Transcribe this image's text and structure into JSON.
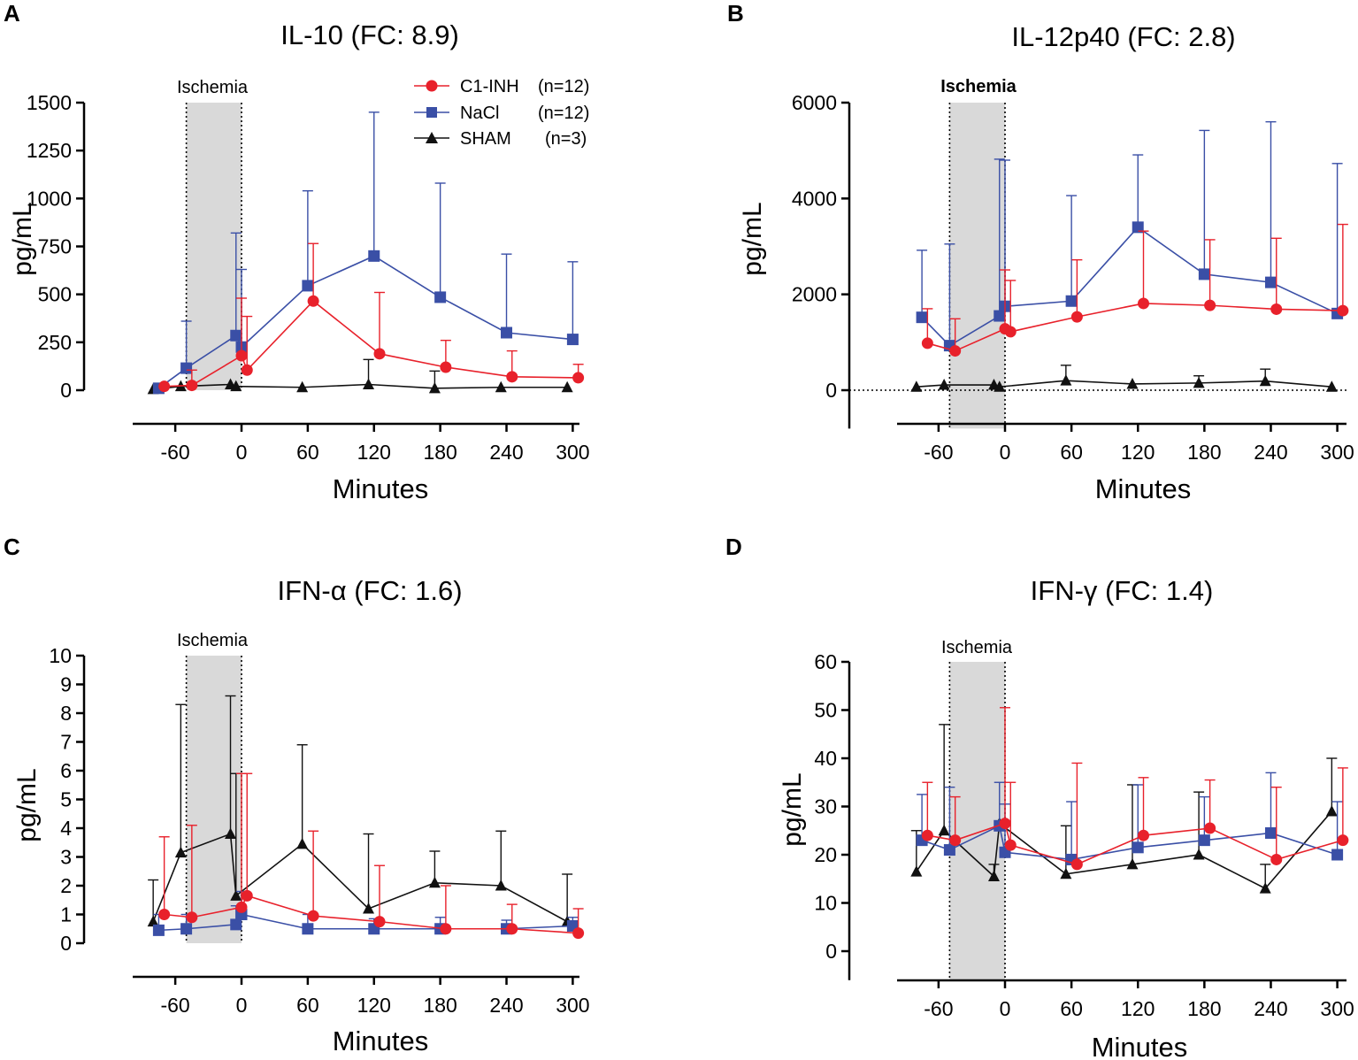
{
  "figure": {
    "legend": [
      {
        "key": "c1inh",
        "label": "C1-INH",
        "n": "(n=12)"
      },
      {
        "key": "nacl",
        "label": "NaCl",
        "n": "(n=12)"
      },
      {
        "key": "sham",
        "label": "SHAM",
        "n": "(n=3)"
      }
    ],
    "colors": {
      "c1inh": "#e8212b",
      "nacl": "#3a4fa6",
      "sham": "#111111",
      "ischemia": "#d9d9d9"
    }
  },
  "chart_data": [
    {
      "panel": "A",
      "type": "line",
      "title": "IL-10 (FC: 8.9)",
      "xlabel": "Minutes",
      "ylabel": "pg/mL",
      "ischemia_label": "Ischemia",
      "ischemia_range": [
        -50,
        0
      ],
      "xlim": [
        -100,
        300
      ],
      "ylim": [
        0,
        1500
      ],
      "yticks": [
        0,
        250,
        500,
        750,
        1000,
        1250,
        1500
      ],
      "yticklabels": [
        "0",
        "250",
        "500",
        "750",
        "1000",
        "1250",
        "1500"
      ],
      "xticks": [
        -60,
        0,
        60,
        120,
        180,
        240,
        300
      ],
      "xticklabels": [
        "-60",
        "0",
        "60",
        "120",
        "180",
        "240",
        "300"
      ],
      "baseline": false,
      "series": [
        {
          "key": "nacl",
          "name": "NaCl",
          "x": [
            -75,
            -50,
            -5,
            0,
            60,
            120,
            180,
            240,
            300
          ],
          "y": [
            10,
            115,
            285,
            225,
            545,
            700,
            485,
            300,
            265
          ],
          "err": [
            0,
            245,
            535,
            405,
            495,
            750,
            595,
            410,
            405
          ]
        },
        {
          "key": "c1inh",
          "name": "C1-INH",
          "x": [
            -70,
            -45,
            0,
            5,
            65,
            125,
            185,
            245,
            305
          ],
          "y": [
            20,
            25,
            180,
            105,
            465,
            190,
            120,
            70,
            65
          ],
          "err": [
            0,
            80,
            300,
            280,
            300,
            320,
            140,
            135,
            70
          ]
        },
        {
          "key": "sham",
          "name": "SHAM",
          "x": [
            -80,
            -55,
            -10,
            -5,
            55,
            115,
            175,
            235,
            295
          ],
          "y": [
            5,
            20,
            30,
            20,
            15,
            30,
            10,
            15,
            15
          ],
          "err": [
            0,
            0,
            0,
            0,
            0,
            130,
            90,
            0,
            0
          ]
        }
      ]
    },
    {
      "panel": "B",
      "type": "line",
      "title": "IL-12p40 (FC: 2.8)",
      "xlabel": "Minutes",
      "ylabel": "pg/mL",
      "ischemia_label": "Ischemia",
      "ischemia_range": [
        -50,
        0
      ],
      "xlim": [
        -100,
        300
      ],
      "ylim": [
        -800,
        6000
      ],
      "yticks": [
        0,
        2000,
        4000,
        6000
      ],
      "yticklabels": [
        "0",
        "2000",
        "4000",
        "6000"
      ],
      "xticks": [
        -60,
        0,
        60,
        120,
        180,
        240,
        300
      ],
      "xticklabels": [
        "-60",
        "0",
        "60",
        "120",
        "180",
        "240",
        "300"
      ],
      "baseline": true,
      "series": [
        {
          "key": "nacl",
          "name": "NaCl",
          "x": [
            -75,
            -50,
            -5,
            0,
            60,
            120,
            180,
            240,
            300
          ],
          "y": [
            1520,
            930,
            1550,
            1750,
            1860,
            3400,
            2420,
            2250,
            1600
          ],
          "err": [
            1400,
            2120,
            3270,
            3050,
            2200,
            1510,
            3000,
            3350,
            3130
          ]
        },
        {
          "key": "c1inh",
          "name": "C1-INH",
          "x": [
            -70,
            -45,
            0,
            5,
            65,
            125,
            185,
            245,
            305
          ],
          "y": [
            980,
            820,
            1280,
            1220,
            1530,
            1810,
            1770,
            1690,
            1660
          ],
          "err": [
            720,
            670,
            1230,
            1070,
            1190,
            1510,
            1370,
            1480,
            1800
          ]
        },
        {
          "key": "sham",
          "name": "SHAM",
          "x": [
            -80,
            -55,
            -10,
            -5,
            55,
            115,
            175,
            235,
            295
          ],
          "y": [
            70,
            110,
            110,
            70,
            200,
            130,
            150,
            190,
            70
          ],
          "err": [
            0,
            0,
            0,
            0,
            320,
            0,
            150,
            250,
            0
          ]
        }
      ]
    },
    {
      "panel": "C",
      "type": "line",
      "title": "IFN-α (FC: 1.6)",
      "xlabel": "Minutes",
      "ylabel": "pg/mL",
      "ischemia_label": "Ischemia",
      "ischemia_range": [
        -50,
        0
      ],
      "xlim": [
        -100,
        300
      ],
      "ylim": [
        0,
        10
      ],
      "yticks": [
        0,
        1,
        2,
        3,
        4,
        5,
        6,
        7,
        8,
        9,
        10
      ],
      "yticklabels": [
        "0",
        "1",
        "2",
        "3",
        "4",
        "5",
        "6",
        "7",
        "8",
        "9",
        "10"
      ],
      "xticks": [
        -60,
        0,
        60,
        120,
        180,
        240,
        300
      ],
      "xticklabels": [
        "-60",
        "0",
        "60",
        "120",
        "180",
        "240",
        "300"
      ],
      "baseline": false,
      "series": [
        {
          "key": "nacl",
          "name": "NaCl",
          "x": [
            -75,
            -50,
            -5,
            0,
            60,
            120,
            180,
            240,
            300
          ],
          "y": [
            0.45,
            0.5,
            0.65,
            1.0,
            0.5,
            0.5,
            0.5,
            0.5,
            0.6
          ],
          "err": [
            0.55,
            0.5,
            0.65,
            0.8,
            0.5,
            0.35,
            0.4,
            0.3,
            0.3
          ]
        },
        {
          "key": "c1inh",
          "name": "C1-INH",
          "x": [
            -70,
            -45,
            0,
            5,
            65,
            125,
            185,
            245,
            305
          ],
          "y": [
            1.0,
            0.9,
            1.25,
            1.65,
            0.95,
            0.75,
            0.5,
            0.5,
            0.35
          ],
          "err": [
            2.7,
            3.2,
            4.65,
            4.25,
            2.95,
            1.95,
            1.5,
            0.85,
            0.85
          ]
        },
        {
          "key": "sham",
          "name": "SHAM",
          "x": [
            -80,
            -55,
            -10,
            -5,
            55,
            115,
            175,
            235,
            295
          ],
          "y": [
            0.75,
            3.15,
            3.8,
            1.65,
            3.45,
            1.2,
            2.1,
            2.0,
            0.75
          ],
          "err": [
            1.45,
            5.15,
            4.8,
            4.25,
            3.45,
            2.6,
            1.1,
            1.9,
            1.65
          ]
        }
      ]
    },
    {
      "panel": "D",
      "type": "line",
      "title": "IFN-γ (FC: 1.4)",
      "xlabel": "Minutes",
      "ylabel": "pg/mL",
      "ischemia_label": "Ischemia",
      "ischemia_range": [
        -50,
        0
      ],
      "xlim": [
        -100,
        300
      ],
      "ylim": [
        -6,
        60
      ],
      "yticks": [
        0,
        10,
        20,
        30,
        40,
        50,
        60
      ],
      "yticklabels": [
        "0",
        "10",
        "20",
        "30",
        "40",
        "50",
        "60"
      ],
      "xticks": [
        -60,
        0,
        60,
        120,
        180,
        240,
        300
      ],
      "xticklabels": [
        "-60",
        "0",
        "60",
        "120",
        "180",
        "240",
        "300"
      ],
      "baseline": false,
      "series": [
        {
          "key": "nacl",
          "name": "NaCl",
          "x": [
            -75,
            -50,
            -5,
            0,
            60,
            120,
            180,
            240,
            300
          ],
          "y": [
            23,
            21,
            26,
            20.5,
            19,
            21.5,
            23,
            24.5,
            20
          ],
          "err": [
            9.5,
            13,
            9,
            10,
            12,
            13,
            9,
            12.5,
            11
          ]
        },
        {
          "key": "c1inh",
          "name": "C1-INH",
          "x": [
            -70,
            -45,
            0,
            5,
            65,
            125,
            185,
            245,
            305
          ],
          "y": [
            24,
            23,
            26.5,
            22,
            18,
            24,
            25.5,
            19,
            23
          ],
          "err": [
            11,
            9,
            24,
            13,
            21,
            12,
            10,
            15,
            15
          ]
        },
        {
          "key": "sham",
          "name": "SHAM",
          "x": [
            -80,
            -55,
            -10,
            -5,
            55,
            115,
            175,
            235,
            295
          ],
          "y": [
            16.5,
            25,
            15.5,
            26.5,
            16,
            18,
            20,
            13,
            29
          ],
          "err": [
            8.5,
            22,
            2.5,
            0,
            10,
            16.5,
            13,
            5,
            11
          ]
        }
      ]
    }
  ]
}
